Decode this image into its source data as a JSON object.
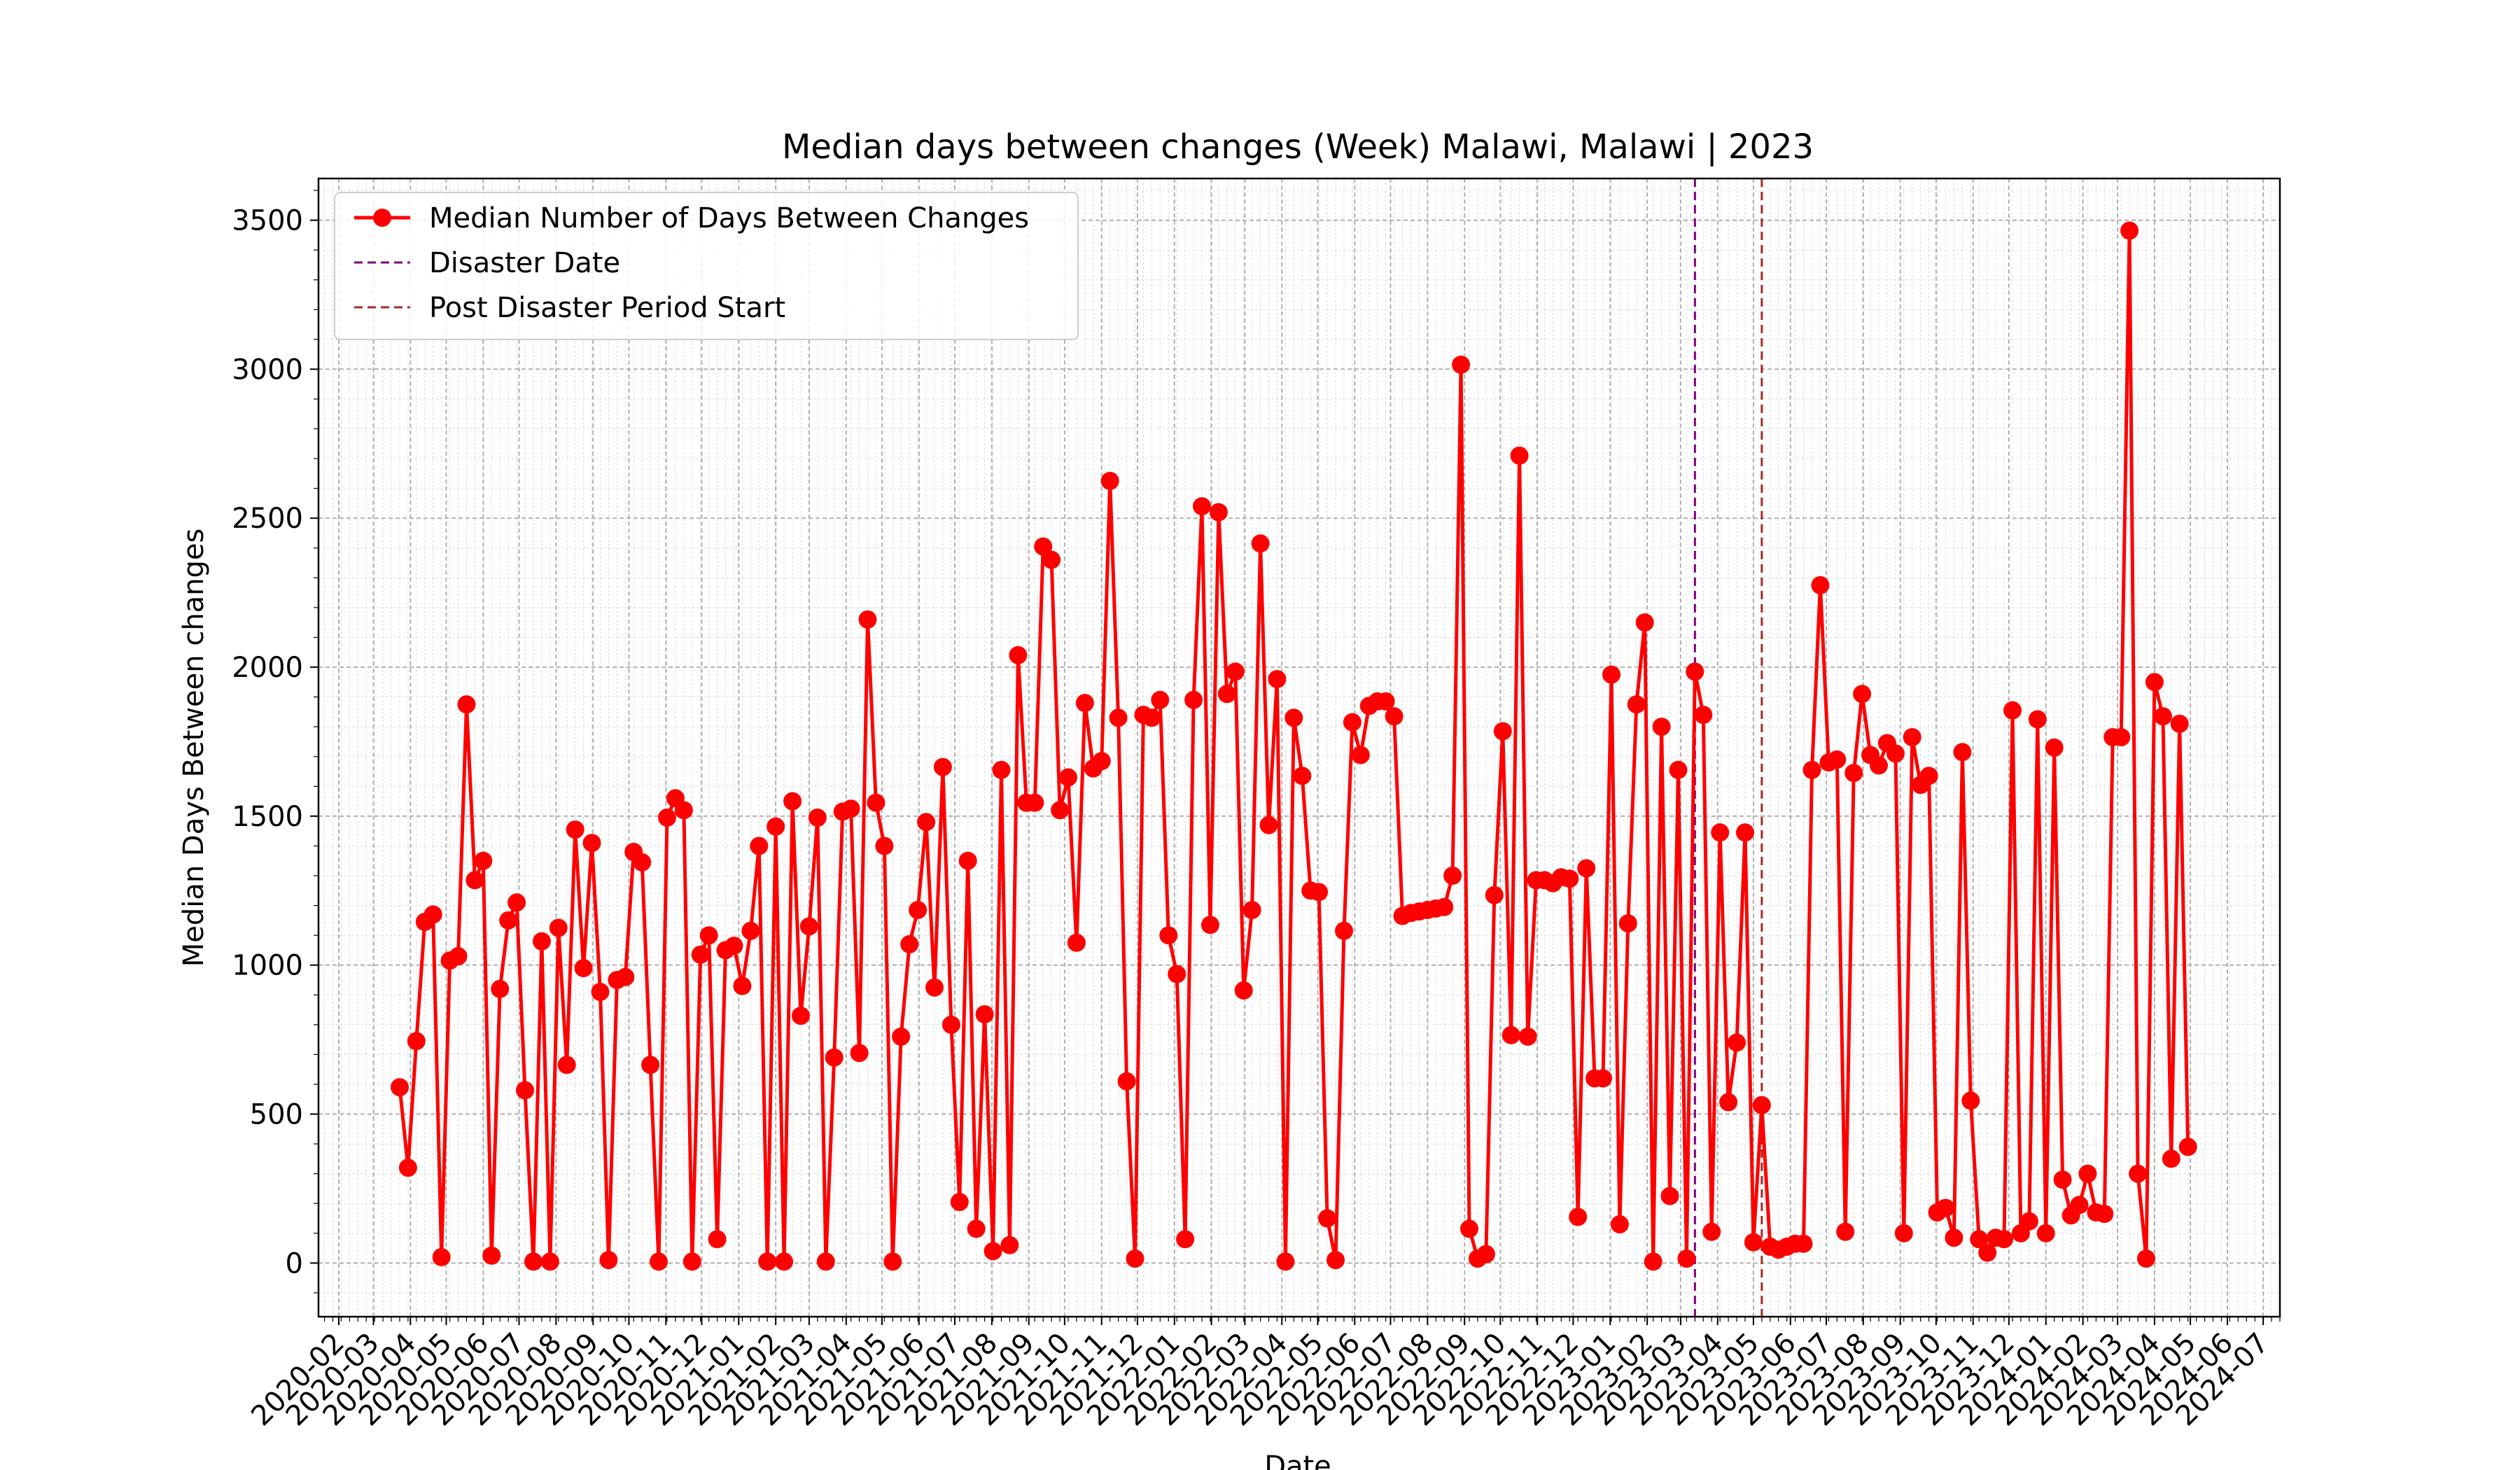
{
  "chart_data": {
    "type": "line",
    "title": "Median days between changes (Week) Malawi, Malawi | 2023",
    "xlabel": "Date",
    "ylabel": "Median Days Between changes",
    "x_axis": "date",
    "xlim": [
      "2020-01-15",
      "2024-07-15"
    ],
    "ylim": [
      -180,
      3640
    ],
    "y_ticks": [
      0,
      500,
      1000,
      1500,
      2000,
      2500,
      3000,
      3500
    ],
    "x_ticks": [
      "2020-02",
      "2020-03",
      "2020-04",
      "2020-05",
      "2020-06",
      "2020-07",
      "2020-08",
      "2020-09",
      "2020-10",
      "2020-11",
      "2020-12",
      "2021-01",
      "2021-02",
      "2021-03",
      "2021-04",
      "2021-05",
      "2021-06",
      "2021-07",
      "2021-08",
      "2021-09",
      "2021-10",
      "2021-11",
      "2021-12",
      "2022-01",
      "2022-02",
      "2022-03",
      "2022-04",
      "2022-05",
      "2022-06",
      "2022-07",
      "2022-08",
      "2022-09",
      "2022-10",
      "2022-11",
      "2022-12",
      "2023-01",
      "2023-02",
      "2023-03",
      "2023-04",
      "2023-05",
      "2023-06",
      "2023-07",
      "2023-08",
      "2023-09",
      "2023-10",
      "2023-11",
      "2023-12",
      "2024-01",
      "2024-02",
      "2024-03",
      "2024-04",
      "2024-05",
      "2024-06",
      "2024-07"
    ],
    "grid": true,
    "legend_position": "upper-left",
    "legend": [
      {
        "label": "Median Number of Days Between Changes",
        "kind": "line-marker",
        "color": "#ff0000"
      },
      {
        "label": "Disaster Date",
        "kind": "dashed",
        "color": "#800080"
      },
      {
        "label": "Post Disaster Period Start",
        "kind": "dashed",
        "color": "#a52a2a"
      }
    ],
    "vlines": [
      {
        "name": "Disaster Date",
        "date": "2023-03-13",
        "color": "#800080"
      },
      {
        "name": "Post Disaster Period Start",
        "date": "2023-05-08",
        "color": "#a52a2a"
      }
    ],
    "series": [
      {
        "name": "Median Number of Days Between Changes",
        "color": "#ff0000",
        "start_date": "2020-03-23",
        "interval_days": 7,
        "values": [
          590,
          320,
          745,
          1145,
          1170,
          20,
          1015,
          1030,
          1875,
          1285,
          1350,
          25,
          920,
          1150,
          1210,
          580,
          5,
          1080,
          5,
          1125,
          665,
          1455,
          990,
          1410,
          910,
          10,
          950,
          960,
          1380,
          1345,
          665,
          5,
          1495,
          1560,
          1520,
          5,
          1035,
          1100,
          80,
          1050,
          1065,
          930,
          1115,
          1400,
          5,
          1465,
          5,
          1550,
          830,
          1130,
          1495,
          5,
          690,
          1515,
          1525,
          705,
          2160,
          1545,
          1400,
          5,
          760,
          1070,
          1185,
          1480,
          925,
          1665,
          800,
          205,
          1350,
          115,
          835,
          40,
          1655,
          60,
          2040,
          1545,
          1545,
          2405,
          2360,
          1520,
          1630,
          1075,
          1880,
          1660,
          1685,
          2625,
          1830,
          610,
          15,
          1840,
          1830,
          1890,
          1100,
          970,
          80,
          1890,
          2540,
          1135,
          2520,
          1910,
          1985,
          915,
          1185,
          2415,
          1470,
          1960,
          5,
          1830,
          1635,
          1250,
          1245,
          150,
          10,
          1115,
          1815,
          1705,
          1870,
          1885,
          1885,
          1835,
          1165,
          1175,
          1180,
          1185,
          1190,
          1195,
          1300,
          3015,
          115,
          15,
          30,
          1235,
          1785,
          765,
          2710,
          760,
          1285,
          1285,
          1275,
          1295,
          1290,
          155,
          1325,
          620,
          620,
          1975,
          130,
          1140,
          1875,
          2150,
          5,
          1800,
          225,
          1655,
          15,
          1985,
          1840,
          105,
          1445,
          540,
          740,
          1445,
          70,
          530,
          55,
          45,
          55,
          65,
          65,
          1655,
          2275,
          1680,
          1690,
          105,
          1645,
          1910,
          1705,
          1670,
          1745,
          1710,
          100,
          1765,
          1605,
          1635,
          170,
          185,
          85,
          1715,
          545,
          80,
          35,
          85,
          80,
          1855,
          100,
          140,
          1825,
          100,
          1730,
          280,
          160,
          195,
          300,
          170,
          165,
          1765,
          1765,
          3465,
          300,
          15,
          1950,
          1835,
          350,
          1810,
          390
        ]
      }
    ]
  }
}
